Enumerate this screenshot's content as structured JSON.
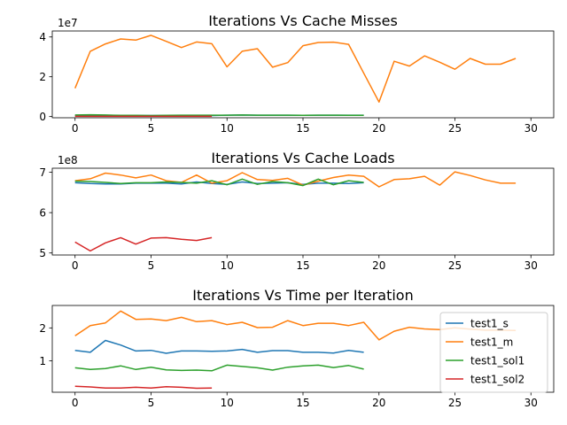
{
  "chart_data": [
    {
      "type": "line",
      "title": "Iterations Vs Cache Misses",
      "xlabel": "",
      "ylabel": "",
      "offset_label": "1e7",
      "xlim": [
        -1.5,
        31.5
      ],
      "ylim": [
        -0.06,
        4.3
      ],
      "xticks": [
        0,
        5,
        10,
        15,
        20,
        25,
        30
      ],
      "yticks": [
        0,
        2,
        4
      ],
      "series": [
        {
          "name": "test1_s",
          "color": "#1f77b4",
          "x": [
            0,
            1,
            2,
            3,
            4,
            5,
            6,
            7,
            8,
            9,
            10,
            11,
            12,
            13,
            14,
            15,
            16,
            17,
            18,
            19
          ],
          "values": [
            0.05,
            0.05,
            0.05,
            0.05,
            0.05,
            0.05,
            0.05,
            0.05,
            0.05,
            0.05,
            0.07,
            0.08,
            0.07,
            0.07,
            0.07,
            0.06,
            0.07,
            0.07,
            0.07,
            0.07
          ]
        },
        {
          "name": "test1_m",
          "color": "#ff7f0e",
          "x": [
            0,
            1,
            2,
            3,
            4,
            5,
            6,
            7,
            8,
            9,
            10,
            11,
            12,
            13,
            14,
            15,
            16,
            17,
            18,
            19,
            20,
            21,
            22,
            23,
            24,
            25,
            26,
            27,
            28,
            29
          ],
          "values": [
            1.42,
            3.28,
            3.65,
            3.9,
            3.84,
            4.08,
            3.78,
            3.47,
            3.75,
            3.66,
            2.5,
            3.28,
            3.41,
            2.48,
            2.71,
            3.56,
            3.72,
            3.74,
            3.63,
            2.18,
            0.73,
            2.78,
            2.54,
            3.05,
            2.73,
            2.38,
            2.92,
            2.63,
            2.63,
            2.92
          ]
        },
        {
          "name": "test1_sol1",
          "color": "#2ca02c",
          "x": [
            0,
            1,
            2,
            3,
            4,
            5,
            6,
            7,
            8,
            9,
            10,
            11,
            12,
            13,
            14,
            15,
            16,
            17,
            18,
            19
          ],
          "values": [
            0.08,
            0.09,
            0.08,
            0.06,
            0.06,
            0.05,
            0.06,
            0.07,
            0.07,
            0.07,
            0.07,
            0.08,
            0.07,
            0.07,
            0.07,
            0.06,
            0.07,
            0.07,
            0.06,
            0.06
          ]
        },
        {
          "name": "test1_sol2",
          "color": "#d62728",
          "x": [
            0,
            1,
            2,
            3,
            4,
            5,
            6,
            7,
            8,
            9
          ],
          "values": [
            0.01,
            0.01,
            0.01,
            0.01,
            0.01,
            0.01,
            0.01,
            0.01,
            0.01,
            0.01
          ]
        }
      ]
    },
    {
      "type": "line",
      "title": "Iterations Vs Cache Loads",
      "xlabel": "",
      "ylabel": "",
      "offset_label": "1e8",
      "xlim": [
        -1.5,
        31.5
      ],
      "ylim": [
        4.95,
        7.1
      ],
      "xticks": [
        0,
        5,
        10,
        15,
        20,
        25,
        30
      ],
      "yticks": [
        5,
        6,
        7
      ],
      "series": [
        {
          "name": "test1_s",
          "color": "#1f77b4",
          "x": [
            0,
            1,
            2,
            3,
            4,
            5,
            6,
            7,
            8,
            9,
            10,
            11,
            12,
            13,
            14,
            15,
            16,
            17,
            18,
            19
          ],
          "values": [
            6.74,
            6.72,
            6.71,
            6.71,
            6.73,
            6.73,
            6.73,
            6.71,
            6.76,
            6.72,
            6.7,
            6.76,
            6.72,
            6.73,
            6.74,
            6.7,
            6.73,
            6.73,
            6.72,
            6.74
          ]
        },
        {
          "name": "test1_m",
          "color": "#ff7f0e",
          "x": [
            0,
            1,
            2,
            3,
            4,
            5,
            6,
            7,
            8,
            9,
            10,
            11,
            12,
            13,
            14,
            15,
            16,
            17,
            18,
            19,
            20,
            21,
            22,
            23,
            24,
            25,
            26,
            27,
            28,
            29
          ],
          "values": [
            6.79,
            6.84,
            6.98,
            6.93,
            6.86,
            6.93,
            6.79,
            6.75,
            6.93,
            6.73,
            6.79,
            6.99,
            6.82,
            6.8,
            6.85,
            6.68,
            6.78,
            6.87,
            6.93,
            6.9,
            6.64,
            6.82,
            6.84,
            6.9,
            6.68,
            7.01,
            6.92,
            6.81,
            6.73,
            6.73
          ]
        },
        {
          "name": "test1_sol1",
          "color": "#2ca02c",
          "x": [
            0,
            1,
            2,
            3,
            4,
            5,
            6,
            7,
            8,
            9,
            10,
            11,
            12,
            13,
            14,
            15,
            16,
            17,
            18,
            19
          ],
          "values": [
            6.78,
            6.77,
            6.75,
            6.72,
            6.74,
            6.74,
            6.76,
            6.75,
            6.73,
            6.79,
            6.69,
            6.83,
            6.7,
            6.77,
            6.74,
            6.67,
            6.83,
            6.69,
            6.79,
            6.75
          ]
        },
        {
          "name": "test1_sol2",
          "color": "#d62728",
          "x": [
            0,
            1,
            2,
            3,
            4,
            5,
            6,
            7,
            8,
            9
          ],
          "values": [
            5.27,
            5.05,
            5.25,
            5.38,
            5.22,
            5.37,
            5.38,
            5.34,
            5.31,
            5.38
          ]
        }
      ]
    },
    {
      "type": "line",
      "title": "Iterations Vs Time per Iteration",
      "xlabel": "",
      "ylabel": "",
      "offset_label": "",
      "xlim": [
        -1.5,
        31.5
      ],
      "ylim": [
        0.05,
        2.68
      ],
      "xticks": [
        0,
        5,
        10,
        15,
        20,
        25,
        30
      ],
      "yticks": [
        1,
        2
      ],
      "legend_position": "right",
      "series": [
        {
          "name": "test1_s",
          "color": "#1f77b4",
          "x": [
            0,
            1,
            2,
            3,
            4,
            5,
            6,
            7,
            8,
            9,
            10,
            11,
            12,
            13,
            14,
            15,
            16,
            17,
            18,
            19
          ],
          "values": [
            1.32,
            1.26,
            1.62,
            1.48,
            1.3,
            1.32,
            1.23,
            1.3,
            1.3,
            1.29,
            1.3,
            1.35,
            1.26,
            1.31,
            1.31,
            1.26,
            1.26,
            1.24,
            1.32,
            1.26
          ]
        },
        {
          "name": "test1_m",
          "color": "#ff7f0e",
          "x": [
            0,
            1,
            2,
            3,
            4,
            5,
            6,
            7,
            8,
            9,
            10,
            11,
            12,
            13,
            14,
            15,
            16,
            17,
            18,
            19,
            20,
            21,
            22,
            23,
            24,
            25,
            26,
            27,
            28,
            29
          ],
          "values": [
            1.76,
            2.07,
            2.15,
            2.51,
            2.26,
            2.27,
            2.22,
            2.32,
            2.19,
            2.22,
            2.1,
            2.17,
            2.01,
            2.02,
            2.22,
            2.07,
            2.14,
            2.14,
            2.07,
            2.17,
            1.64,
            1.9,
            2.02,
            1.97,
            1.95,
            2.0,
            1.96,
            1.93,
            1.93,
            1.92
          ]
        },
        {
          "name": "test1_sol1",
          "color": "#2ca02c",
          "x": [
            0,
            1,
            2,
            3,
            4,
            5,
            6,
            7,
            8,
            9,
            10,
            11,
            12,
            13,
            14,
            15,
            16,
            17,
            18,
            19
          ],
          "values": [
            0.79,
            0.74,
            0.77,
            0.85,
            0.74,
            0.81,
            0.73,
            0.71,
            0.72,
            0.7,
            0.87,
            0.83,
            0.79,
            0.72,
            0.81,
            0.85,
            0.87,
            0.8,
            0.86,
            0.75
          ]
        },
        {
          "name": "test1_sol2",
          "color": "#d62728",
          "x": [
            0,
            1,
            2,
            3,
            4,
            5,
            6,
            7,
            8,
            9
          ],
          "values": [
            0.23,
            0.21,
            0.18,
            0.18,
            0.2,
            0.18,
            0.22,
            0.2,
            0.17,
            0.18
          ]
        }
      ]
    }
  ]
}
